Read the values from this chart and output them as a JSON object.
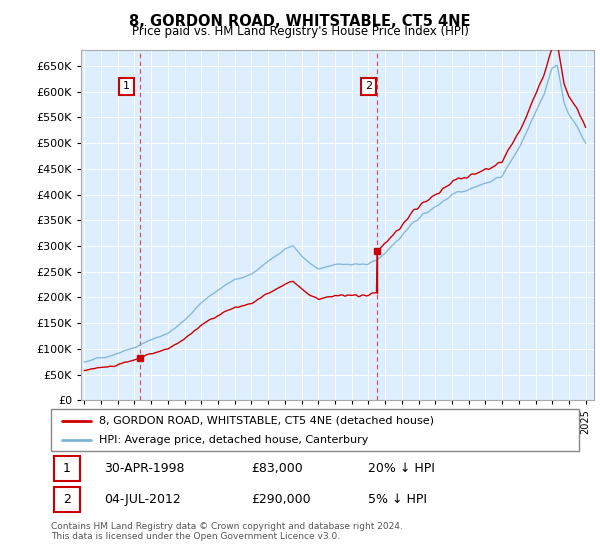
{
  "title": "8, GORDON ROAD, WHITSTABLE, CT5 4NE",
  "subtitle": "Price paid vs. HM Land Registry's House Price Index (HPI)",
  "legend_line1": "8, GORDON ROAD, WHITSTABLE, CT5 4NE (detached house)",
  "legend_line2": "HPI: Average price, detached house, Canterbury",
  "annotation1_date": "30-APR-1998",
  "annotation1_price": "£83,000",
  "annotation1_hpi": "20% ↓ HPI",
  "annotation2_date": "04-JUL-2012",
  "annotation2_price": "£290,000",
  "annotation2_hpi": "5% ↓ HPI",
  "footnote": "Contains HM Land Registry data © Crown copyright and database right 2024.\nThis data is licensed under the Open Government Licence v3.0.",
  "price_color": "#cc0000",
  "hpi_color": "#7fb3d3",
  "background_color": "#ddeeff",
  "sale1_year": 1998.33,
  "sale1_price": 83000,
  "sale2_year": 2012.5,
  "sale2_price": 290000,
  "ylim_min": 0,
  "ylim_max": 680000,
  "xlim_min": 1994.8,
  "xlim_max": 2025.5
}
